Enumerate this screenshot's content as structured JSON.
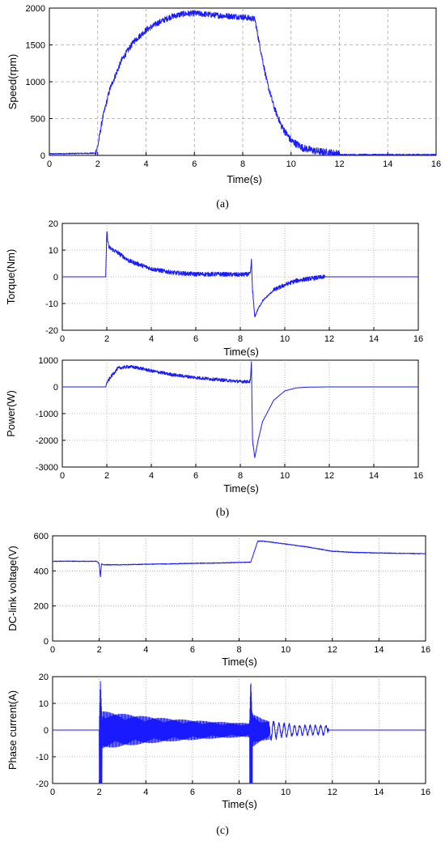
{
  "colors": {
    "series": "#1a1aff"
  },
  "chart_data": [
    {
      "id": "speed",
      "type": "line",
      "caption": "(a)",
      "xlabel": "Time(s)",
      "ylabel": "Speed(rpm)",
      "xlim": [
        0,
        16
      ],
      "ylim": [
        0,
        2000
      ],
      "xticks": [
        0,
        2,
        4,
        6,
        8,
        10,
        12,
        14,
        16
      ],
      "yticks": [
        0,
        500,
        1000,
        1500,
        2000
      ],
      "grid": "dashed",
      "noise": 40,
      "x": [
        0,
        1.9,
        2.0,
        2.2,
        2.5,
        3,
        3.5,
        4,
        4.5,
        5,
        5.5,
        6,
        7,
        8,
        8.5,
        8.7,
        9,
        9.3,
        9.6,
        10,
        10.5,
        11,
        11.5,
        11.9,
        12,
        14,
        16
      ],
      "y": [
        20,
        30,
        120,
        500,
        900,
        1300,
        1550,
        1700,
        1800,
        1880,
        1920,
        1930,
        1900,
        1880,
        1850,
        1500,
        1000,
        650,
        400,
        200,
        100,
        60,
        40,
        30,
        10,
        10,
        10
      ]
    },
    {
      "id": "torque",
      "type": "line",
      "caption": "",
      "xlabel": "Time(s)",
      "ylabel": "Torque(Nm)",
      "xlim": [
        0,
        16
      ],
      "ylim": [
        -20,
        20
      ],
      "xticks": [
        0,
        2,
        4,
        6,
        8,
        10,
        12,
        14,
        16
      ],
      "yticks": [
        -20,
        -10,
        0,
        10,
        20
      ],
      "grid": "dotted",
      "noise": 0.8,
      "x": [
        0,
        1.95,
        2.0,
        2.05,
        2.1,
        2.5,
        3,
        4,
        5,
        6,
        7,
        8,
        8.45,
        8.5,
        8.55,
        8.65,
        8.8,
        9,
        9.5,
        10,
        10.5,
        11,
        11.8,
        12,
        16
      ],
      "y": [
        0,
        0,
        17,
        13,
        11,
        9,
        6,
        3,
        1.5,
        1,
        1,
        0.8,
        1,
        6,
        -5,
        -15,
        -12,
        -9,
        -5,
        -3,
        -1.5,
        -0.8,
        0,
        0,
        0
      ]
    },
    {
      "id": "power",
      "type": "line",
      "caption": "(b)",
      "xlabel": "Time(s)",
      "ylabel": "Power(W)",
      "xlim": [
        0,
        16
      ],
      "ylim": [
        -3000,
        1000
      ],
      "xticks": [
        0,
        2,
        4,
        6,
        8,
        10,
        12,
        14,
        16
      ],
      "yticks": [
        -3000,
        -2000,
        -1000,
        0,
        1000
      ],
      "grid": "dotted",
      "noise": 60,
      "x": [
        0,
        1.95,
        2.0,
        2.2,
        2.5,
        3,
        3.5,
        4,
        5,
        6,
        7,
        8,
        8.45,
        8.5,
        8.55,
        8.65,
        8.8,
        9,
        9.5,
        10,
        10.5,
        11,
        12,
        16
      ],
      "y": [
        0,
        0,
        150,
        400,
        700,
        760,
        700,
        600,
        450,
        350,
        270,
        200,
        200,
        900,
        -2000,
        -2650,
        -2000,
        -1300,
        -500,
        -150,
        -40,
        -10,
        0,
        0
      ]
    },
    {
      "id": "dclink",
      "type": "line",
      "caption": "",
      "xlabel": "Time(s)",
      "ylabel": "DC-link voltage(V)",
      "xlim": [
        0,
        16
      ],
      "ylim": [
        0,
        600
      ],
      "xticks": [
        0,
        2,
        4,
        6,
        8,
        10,
        12,
        14,
        16
      ],
      "yticks": [
        0,
        200,
        400,
        600
      ],
      "grid": "dotted",
      "noise": 2,
      "x": [
        0,
        1.9,
        2.0,
        2.05,
        2.1,
        2.2,
        3,
        4,
        5,
        6,
        7,
        8,
        8.5,
        8.8,
        9,
        10,
        11,
        12,
        13,
        14,
        15,
        16
      ],
      "y": [
        455,
        455,
        440,
        365,
        440,
        435,
        435,
        438,
        440,
        443,
        445,
        448,
        450,
        570,
        570,
        553,
        535,
        512,
        505,
        502,
        500,
        498
      ]
    },
    {
      "id": "phase",
      "type": "line",
      "caption": "(c)",
      "xlabel": "Time(s)",
      "ylabel": "Phase current(A)",
      "xlim": [
        0,
        16
      ],
      "ylim": [
        -20,
        20
      ],
      "xticks": [
        0,
        2,
        4,
        6,
        8,
        10,
        12,
        14,
        16
      ],
      "yticks": [
        -20,
        -10,
        0,
        10,
        20
      ],
      "grid": "dotted",
      "noise": 0,
      "envelope_t": [
        0,
        2.0,
        2.05,
        2.1,
        3,
        4,
        5,
        6,
        7,
        8,
        8.45,
        8.5,
        8.55,
        8.6,
        9,
        9.5,
        10,
        10.5,
        11,
        11.5,
        11.8,
        11.85,
        12,
        16
      ],
      "envelope_a": [
        0,
        0,
        19,
        7,
        6,
        5,
        4.2,
        3.6,
        3,
        2.6,
        2.5,
        19,
        6.5,
        6,
        4,
        3,
        2.2,
        1.8,
        1.6,
        1.6,
        1.6,
        0,
        0,
        0
      ]
    }
  ]
}
